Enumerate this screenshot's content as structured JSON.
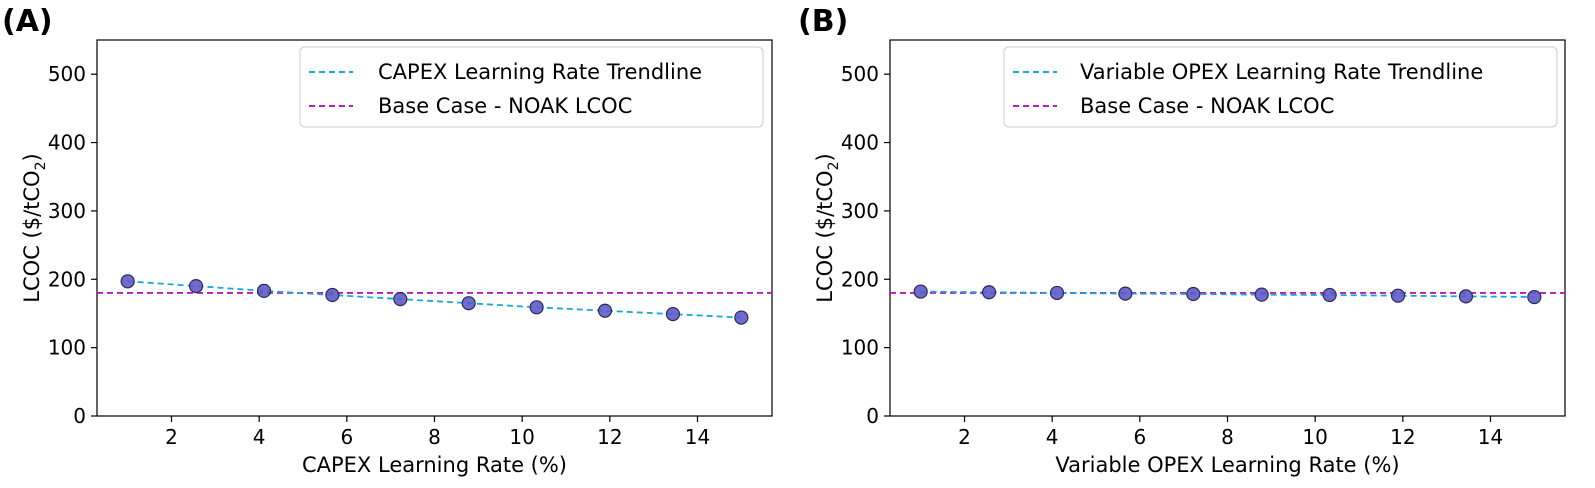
{
  "chart_data": [
    {
      "panel_label": "(A)",
      "type": "line",
      "xlabel": "CAPEX Learning Rate (%)",
      "ylabel_main": "LCOC ($/tCO",
      "ylabel_sub": "2",
      "ylabel_close": ")",
      "xlim": [
        0.3,
        15.7
      ],
      "ylim": [
        0,
        550
      ],
      "x_ticks": [
        2,
        4,
        6,
        8,
        10,
        12,
        14
      ],
      "y_ticks": [
        0,
        100,
        200,
        300,
        400,
        500
      ],
      "x": [
        1,
        2.56,
        4.11,
        5.67,
        7.22,
        8.78,
        10.33,
        11.89,
        13.44,
        15
      ],
      "series": [
        {
          "name": "CAPEX Learning Rate Trendline",
          "color": "#1ea6d2",
          "style": "dashed",
          "values": [
            197,
            190,
            183,
            177,
            171,
            165,
            159,
            154,
            149,
            144
          ]
        }
      ],
      "baseline": {
        "name": "Base Case - NOAK LCOC",
        "value": 180,
        "color": "#b41eb4",
        "style": "dashed"
      },
      "marker_color": "#5f5cc8",
      "legend": [
        "CAPEX Learning Rate Trendline",
        "Base Case - NOAK LCOC"
      ],
      "legend_position": "top-right"
    },
    {
      "panel_label": "(B)",
      "type": "line",
      "xlabel": "Variable OPEX Learning Rate (%)",
      "ylabel_main": "LCOC ($/tCO",
      "ylabel_sub": "2",
      "ylabel_close": ")",
      "xlim": [
        0.3,
        15.7
      ],
      "ylim": [
        0,
        550
      ],
      "x_ticks": [
        2,
        4,
        6,
        8,
        10,
        12,
        14
      ],
      "y_ticks": [
        0,
        100,
        200,
        300,
        400,
        500
      ],
      "x": [
        1,
        2.56,
        4.11,
        5.67,
        7.22,
        8.78,
        10.33,
        11.89,
        13.44,
        15
      ],
      "series": [
        {
          "name": "Variable OPEX Learning Rate Trendline",
          "color": "#1ea6d2",
          "style": "dashed",
          "values": [
            182,
            181,
            180,
            179,
            178.5,
            177.5,
            177,
            176,
            175,
            174
          ]
        }
      ],
      "baseline": {
        "name": "Base Case - NOAK LCOC",
        "value": 180,
        "color": "#b41eb4",
        "style": "dashed"
      },
      "marker_color": "#5f5cc8",
      "legend": [
        "Variable OPEX Learning Rate Trendline",
        "Base Case - NOAK LCOC"
      ],
      "legend_position": "top-right"
    }
  ]
}
